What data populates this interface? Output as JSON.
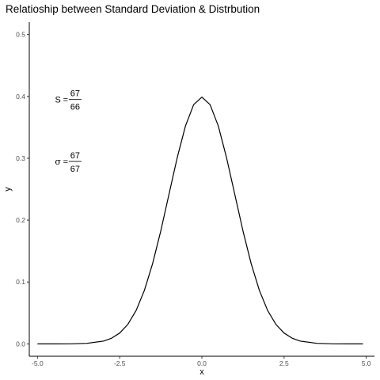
{
  "chart_data": {
    "type": "line",
    "title": "Relatioship between Standard Deviation & Distrbution",
    "xlabel": "x",
    "ylabel": "y",
    "xlim": [
      -5.25,
      5.25
    ],
    "ylim": [
      -0.02,
      0.52
    ],
    "x_ticks": [
      -5.0,
      -2.5,
      0.0,
      2.5,
      5.0
    ],
    "x_tick_labels": [
      "-5.0",
      "-2.5",
      "0.0",
      "2.5",
      "5.0"
    ],
    "y_ticks": [
      0.0,
      0.1,
      0.2,
      0.3,
      0.4,
      0.5
    ],
    "y_tick_labels": [
      "0.0",
      "0.1",
      "0.2",
      "0.3",
      "0.4",
      "0.5"
    ],
    "grid": false,
    "line_color": "#000000",
    "series": [
      {
        "x": [
          -5.0,
          -4.5,
          -4.0,
          -3.5,
          -3.0,
          -2.75,
          -2.5,
          -2.25,
          -2.0,
          -1.75,
          -1.5,
          -1.25,
          -1.0,
          -0.75,
          -0.5,
          -0.25,
          0.0,
          0.25,
          0.5,
          0.75,
          1.0,
          1.25,
          1.5,
          1.75,
          2.0,
          2.25,
          2.5,
          2.75,
          3.0,
          3.5,
          4.0,
          4.5,
          4.9
        ],
        "y": [
          0.0,
          0.0,
          0.0001,
          0.0009,
          0.0044,
          0.0091,
          0.0175,
          0.0317,
          0.054,
          0.0863,
          0.1295,
          0.1826,
          0.242,
          0.3011,
          0.3521,
          0.3867,
          0.3989,
          0.3867,
          0.3521,
          0.3011,
          0.242,
          0.1826,
          0.1295,
          0.0863,
          0.054,
          0.0317,
          0.0175,
          0.0091,
          0.0044,
          0.0009,
          0.0001,
          0.0,
          0.0
        ]
      }
    ],
    "annotations": [
      {
        "symbol": "S",
        "equals": "=",
        "numerator": "67",
        "denominator": "66",
        "x": -4.0,
        "y": 0.395
      },
      {
        "symbol": "σ",
        "equals": "=",
        "numerator": "67",
        "denominator": "67",
        "x": -4.0,
        "y": 0.295
      }
    ]
  }
}
